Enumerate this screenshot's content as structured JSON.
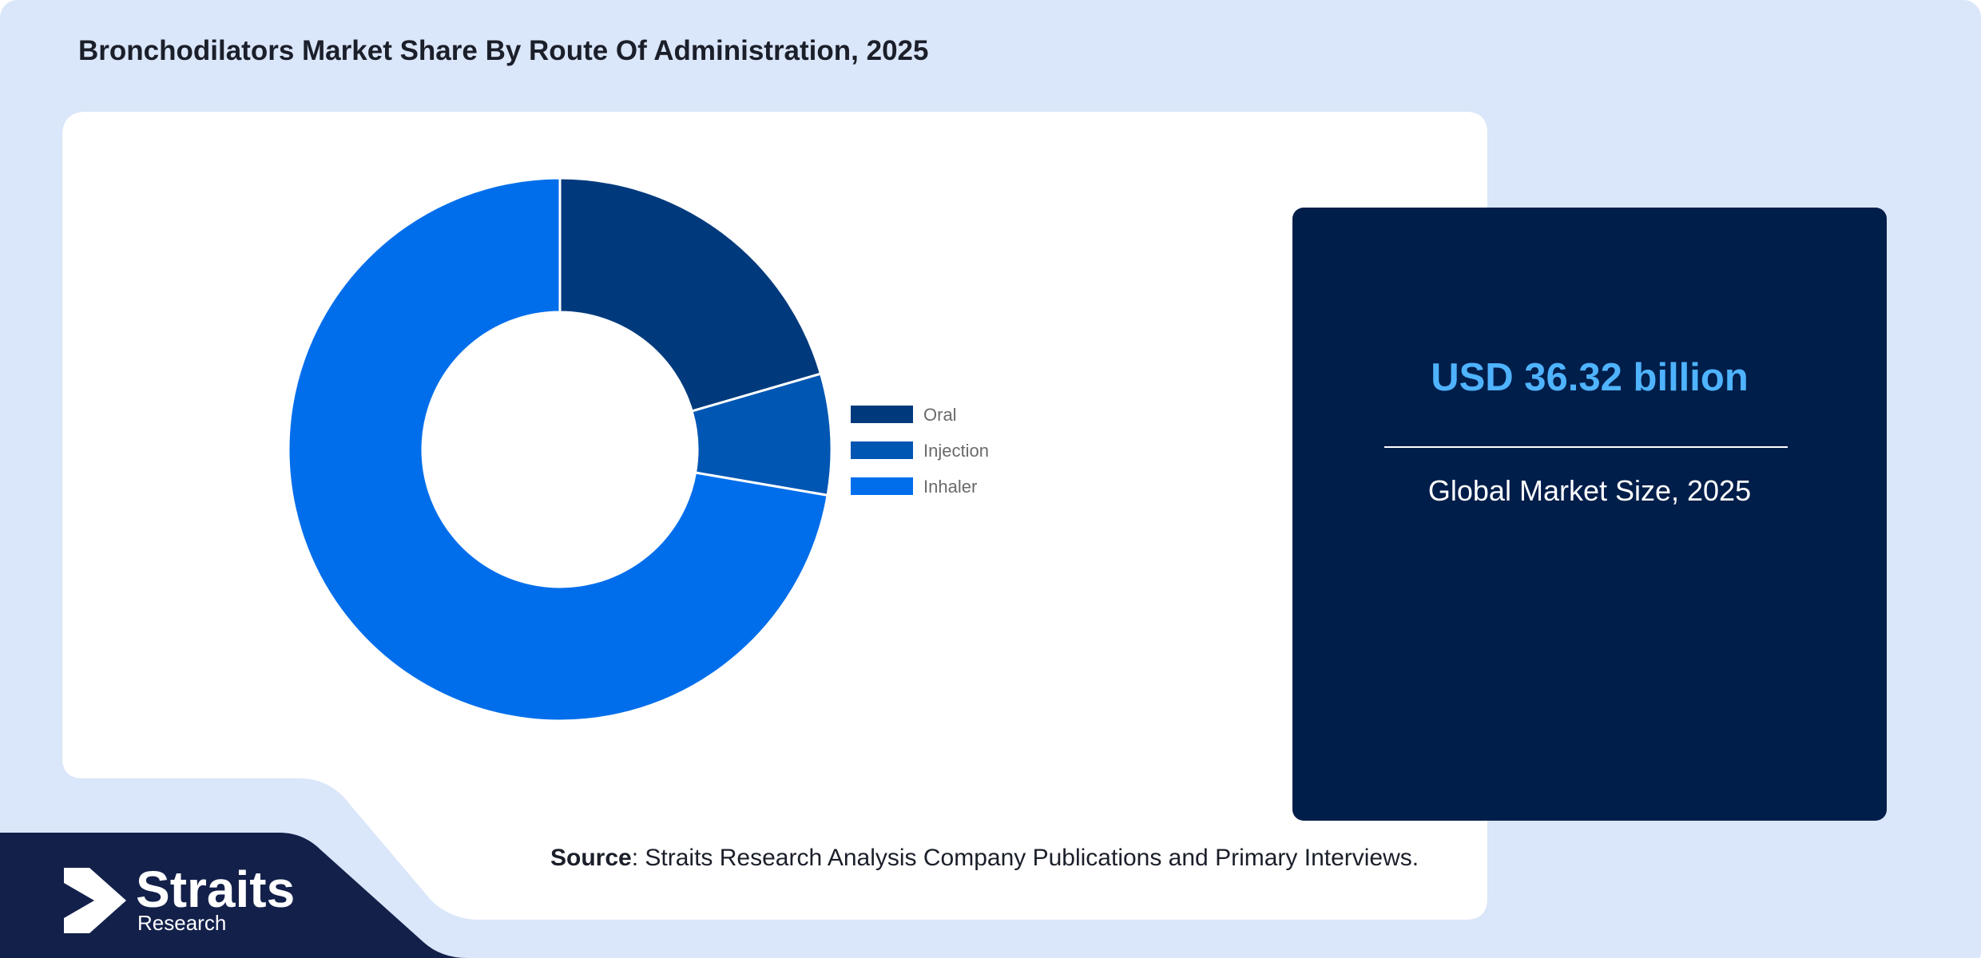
{
  "header": {
    "title": "Bronchodilators Market Share By Route Of Administration, 2025"
  },
  "chart_data": {
    "type": "pie",
    "variant": "donut",
    "categories": [
      "Oral",
      "Injection",
      "Inhaler"
    ],
    "values": [
      20.5,
      7.2,
      72.3
    ],
    "unit": "%",
    "colors": [
      "#003a7d",
      "#0056b3",
      "#006eeb"
    ],
    "legend_position": "right"
  },
  "stat_card": {
    "value": "USD 36.32 billion",
    "caption": "Global Market Size, 2025"
  },
  "footer": {
    "source_label": "Source",
    "source_text": ": Straits Research Analysis Company Publications and Primary Interviews."
  },
  "brand": {
    "name": "Straits",
    "subtitle": "Research"
  },
  "colors": {
    "page_bg": "#dae6f9",
    "card_bg": "#ffffff",
    "stat_bg": "#001e4a",
    "stat_value": "#4fb3ff",
    "brand_bg": "#13204a"
  }
}
